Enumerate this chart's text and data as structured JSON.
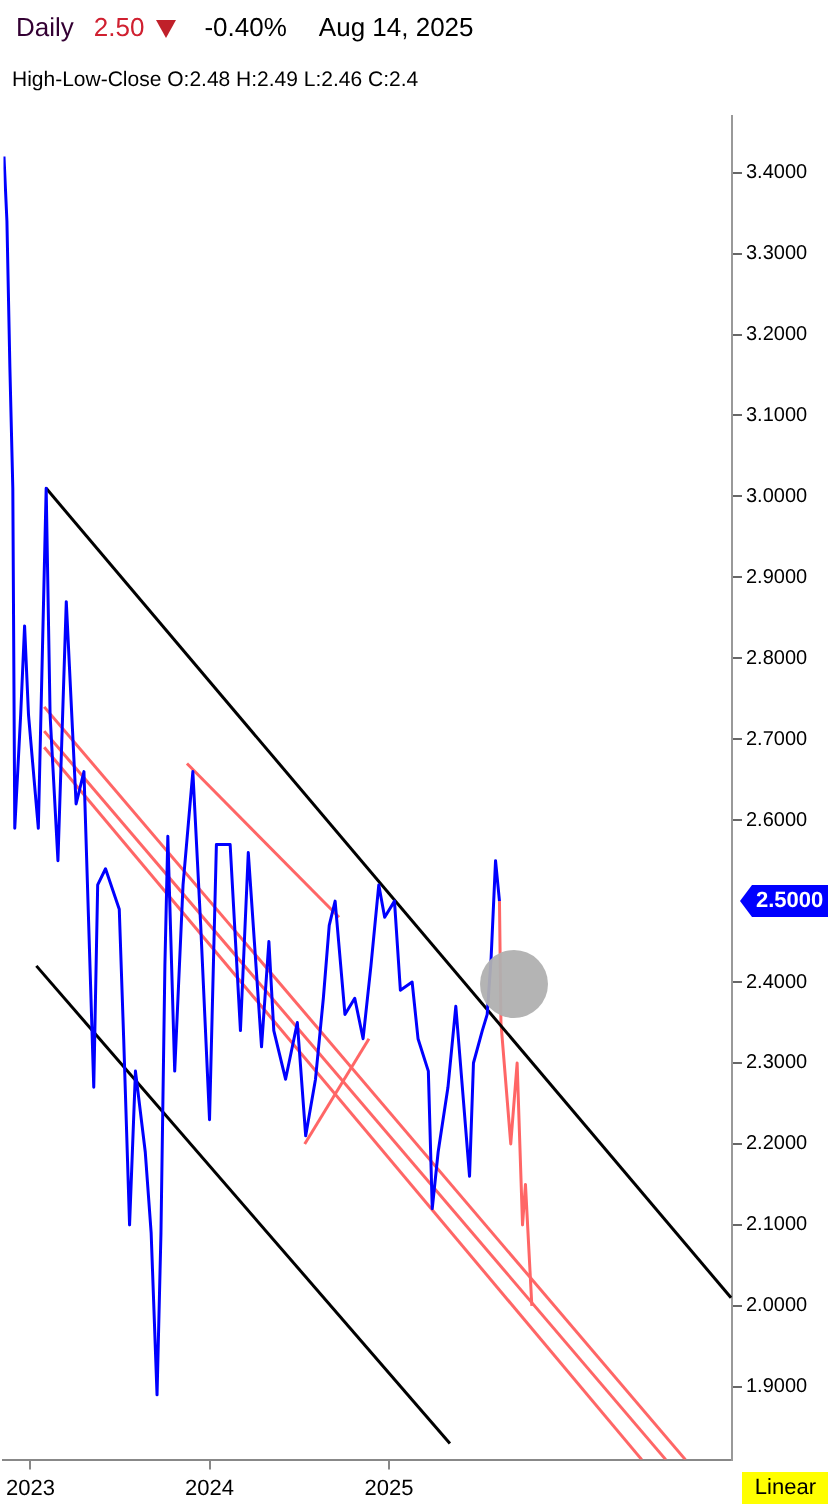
{
  "chart_data": {
    "type": "line",
    "title": "Daily",
    "subtitle": "High-Low-Close   O:2.48  H:2.49  L:2.46  C:2.4",
    "annotations": [
      "2.50",
      "-0.40%",
      "Aug 14, 2025",
      "Linear",
      "2.5000"
    ],
    "xlim": [
      "2022-11-07",
      "2026-12-01"
    ],
    "xticks": [
      {
        "value": "2023-01-01",
        "label": "2023"
      },
      {
        "value": "2024-01-01",
        "label": "2024"
      },
      {
        "value": "2025-01-01",
        "label": "2025"
      }
    ],
    "ylim": [
      1.81,
      3.47
    ],
    "yticks": [
      {
        "value": 1.9,
        "label": "1.9000"
      },
      {
        "value": 2.0,
        "label": "2.0000"
      },
      {
        "value": 2.1,
        "label": "2.1000"
      },
      {
        "value": 2.2,
        "label": "2.2000"
      },
      {
        "value": 2.3,
        "label": "2.3000"
      },
      {
        "value": 2.4,
        "label": "2.4000"
      },
      {
        "value": 2.6,
        "label": "2.6000"
      },
      {
        "value": 2.7,
        "label": "2.7000"
      },
      {
        "value": 2.8,
        "label": "2.8000"
      },
      {
        "value": 2.9,
        "label": "2.9000"
      },
      {
        "value": 3.0,
        "label": "3.0000"
      },
      {
        "value": 3.1,
        "label": "3.1000"
      },
      {
        "value": 3.2,
        "label": "3.2000"
      },
      {
        "value": 3.3,
        "label": "3.3000"
      },
      {
        "value": 3.4,
        "label": "3.4000"
      }
    ],
    "grid": false,
    "legend": false,
    "series": [
      {
        "color": "#0000ff",
        "x": [
          "2022-11-08",
          "2022-11-14",
          "2022-11-20",
          "2022-11-26",
          "2022-11-30",
          "2022-12-12",
          "2022-12-20",
          "2022-12-28",
          "2023-01-17",
          "2023-02-02",
          "2023-02-10",
          "2023-02-26",
          "2023-03-15",
          "2023-04-04",
          "2023-04-20",
          "2023-05-10",
          "2023-05-18",
          "2023-06-03",
          "2023-07-01",
          "2023-07-10",
          "2023-07-22",
          "2023-08-03",
          "2023-08-23",
          "2023-09-04",
          "2023-09-16",
          "2023-09-24",
          "2023-10-02",
          "2023-10-08",
          "2023-10-22",
          "2023-11-08",
          "2023-11-28",
          "2023-12-14",
          "2024-01-01",
          "2024-01-15",
          "2024-02-12",
          "2024-03-04",
          "2024-03-20",
          "2024-04-16",
          "2024-05-01",
          "2024-05-11",
          "2024-06-04",
          "2024-06-28",
          "2024-07-15",
          "2024-08-04",
          "2024-08-20",
          "2024-09-01",
          "2024-09-13",
          "2024-10-03",
          "2024-10-23",
          "2024-11-09",
          "2024-11-25",
          "2024-12-11",
          "2024-12-23",
          "2025-01-12",
          "2025-01-24",
          "2025-02-17",
          "2025-03-01",
          "2025-03-22",
          "2025-03-30",
          "2025-04-11",
          "2025-05-01",
          "2025-05-17",
          "2025-06-02",
          "2025-06-14",
          "2025-06-22",
          "2025-07-10",
          "2025-07-20",
          "2025-07-28",
          "2025-08-06",
          "2025-08-14"
        ],
        "values": [
          3.42,
          3.34,
          3.16,
          3.01,
          2.59,
          2.73,
          2.84,
          2.73,
          2.59,
          3.01,
          2.73,
          2.55,
          2.87,
          2.62,
          2.66,
          2.27,
          2.52,
          2.54,
          2.49,
          2.33,
          2.1,
          2.29,
          2.19,
          2.09,
          1.89,
          2.09,
          2.42,
          2.58,
          2.29,
          2.52,
          2.66,
          2.47,
          2.23,
          2.57,
          2.57,
          2.34,
          2.56,
          2.32,
          2.45,
          2.34,
          2.28,
          2.35,
          2.21,
          2.28,
          2.38,
          2.47,
          2.5,
          2.36,
          2.38,
          2.33,
          2.42,
          2.52,
          2.48,
          2.5,
          2.39,
          2.4,
          2.33,
          2.29,
          2.12,
          2.19,
          2.27,
          2.37,
          2.25,
          2.16,
          2.3,
          2.34,
          2.36,
          2.43,
          2.55,
          2.5
        ]
      },
      {
        "color": "#000000",
        "x": [
          "2023-02-02",
          "2026-11-29"
        ],
        "values": [
          3.01,
          2.01
        ]
      },
      {
        "color": "#000000",
        "x": [
          "2023-01-13",
          "2025-05-05"
        ],
        "values": [
          2.42,
          1.83
        ]
      },
      {
        "color": "#ff6666",
        "x": [
          "2023-01-29",
          "2026-08-28"
        ],
        "values": [
          2.74,
          1.81
        ]
      },
      {
        "color": "#ff6666",
        "x": [
          "2023-01-29",
          "2026-07-19"
        ],
        "values": [
          2.71,
          1.81
        ]
      },
      {
        "color": "#ff6666",
        "x": [
          "2023-01-29",
          "2026-05-31"
        ],
        "values": [
          2.69,
          1.81
        ]
      },
      {
        "color": "#ff6666",
        "x": [
          "2023-11-16",
          "2024-09-21"
        ],
        "values": [
          2.67,
          2.48
        ]
      },
      {
        "color": "#ff6666",
        "x": [
          "2024-07-13",
          "2024-11-21"
        ],
        "values": [
          2.2,
          2.33
        ]
      },
      {
        "color": "#ff6666",
        "x": [
          "2025-08-14",
          "2025-08-17",
          "2025-09-06",
          "2025-09-19",
          "2025-09-30",
          "2025-10-06",
          "2025-10-19"
        ],
        "values": [
          2.5,
          2.35,
          2.2,
          2.3,
          2.1,
          2.15,
          2.0
        ]
      }
    ]
  }
}
